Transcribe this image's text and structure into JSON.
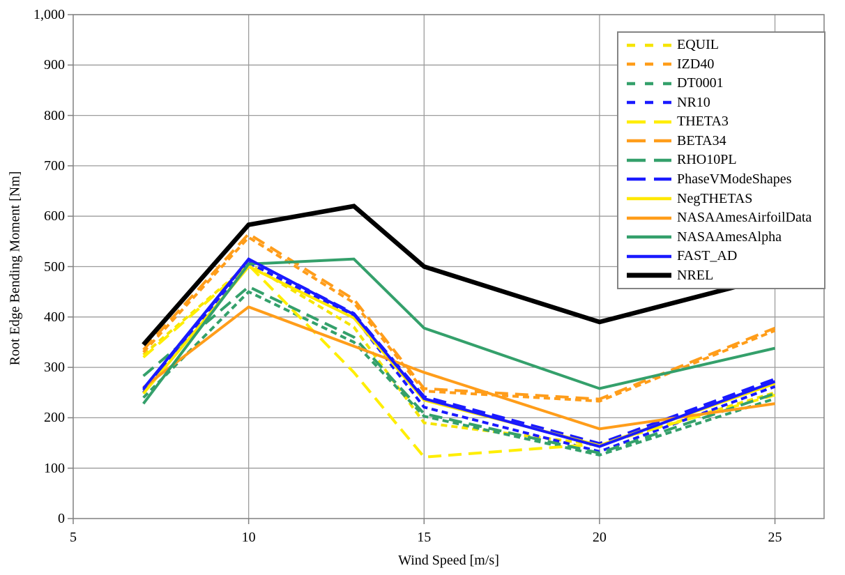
{
  "chart_data": {
    "type": "line",
    "title": "",
    "xlabel": "Wind Speed [m/s]",
    "ylabel": "Root Edge Bending Moment [Nm]",
    "x": [
      7,
      10,
      13,
      15,
      20,
      25
    ],
    "xlim": [
      5,
      26.4
    ],
    "xticks": [
      5,
      10,
      15,
      20,
      25
    ],
    "ylim": [
      0,
      1000
    ],
    "yticks": [
      0,
      100,
      200,
      300,
      400,
      500,
      600,
      700,
      800,
      900,
      1000
    ],
    "grid": true,
    "legend_position": "top-right",
    "axis_color": "#808080",
    "grid_color": "#9c9c9c",
    "series": [
      {
        "name": "EQUIL",
        "color": "#f5e400",
        "style": "dotted",
        "values": [
          325,
          505,
          380,
          190,
          146,
          250
        ]
      },
      {
        "name": "IZD40",
        "color": "#ff9d1a",
        "style": "dotted",
        "values": [
          330,
          558,
          428,
          253,
          233,
          373
        ]
      },
      {
        "name": "DT0001",
        "color": "#34a06b",
        "style": "dotted",
        "values": [
          240,
          450,
          350,
          203,
          126,
          238
        ]
      },
      {
        "name": "NR10",
        "color": "#1a1aff",
        "style": "dotted",
        "values": [
          250,
          508,
          400,
          221,
          133,
          262
        ]
      },
      {
        "name": "THETA3",
        "color": "#ffee00",
        "style": "dashed",
        "values": [
          320,
          503,
          290,
          122,
          148,
          245
        ]
      },
      {
        "name": "BETA34",
        "color": "#ff9d1a",
        "style": "dashed",
        "values": [
          335,
          565,
          435,
          258,
          237,
          378
        ]
      },
      {
        "name": "RHO10PL",
        "color": "#34a06b",
        "style": "dashed",
        "values": [
          283,
          460,
          360,
          208,
          130,
          248
        ]
      },
      {
        "name": "PhaseVModeShapes",
        "color": "#1a1aff",
        "style": "dashed",
        "values": [
          255,
          514,
          407,
          242,
          149,
          277
        ]
      },
      {
        "name": "NegTHETAS",
        "color": "#ffe800",
        "style": "solid",
        "values": [
          248,
          500,
          398,
          235,
          145,
          268
        ]
      },
      {
        "name": "NASAAmesAirfoilData",
        "color": "#ff9d1a",
        "style": "solid",
        "values": [
          260,
          420,
          342,
          290,
          178,
          228
        ]
      },
      {
        "name": "NASAAmesAlpha",
        "color": "#34a06b",
        "style": "solid",
        "values": [
          228,
          505,
          515,
          378,
          258,
          338
        ]
      },
      {
        "name": "FAST_AD",
        "color": "#1a1aff",
        "style": "solid",
        "values": [
          258,
          515,
          405,
          238,
          143,
          272
        ]
      },
      {
        "name": "NREL",
        "color": "#000000",
        "style": "solid",
        "values": [
          345,
          583,
          620,
          500,
          390,
          480
        ],
        "emphasis": true
      }
    ]
  }
}
